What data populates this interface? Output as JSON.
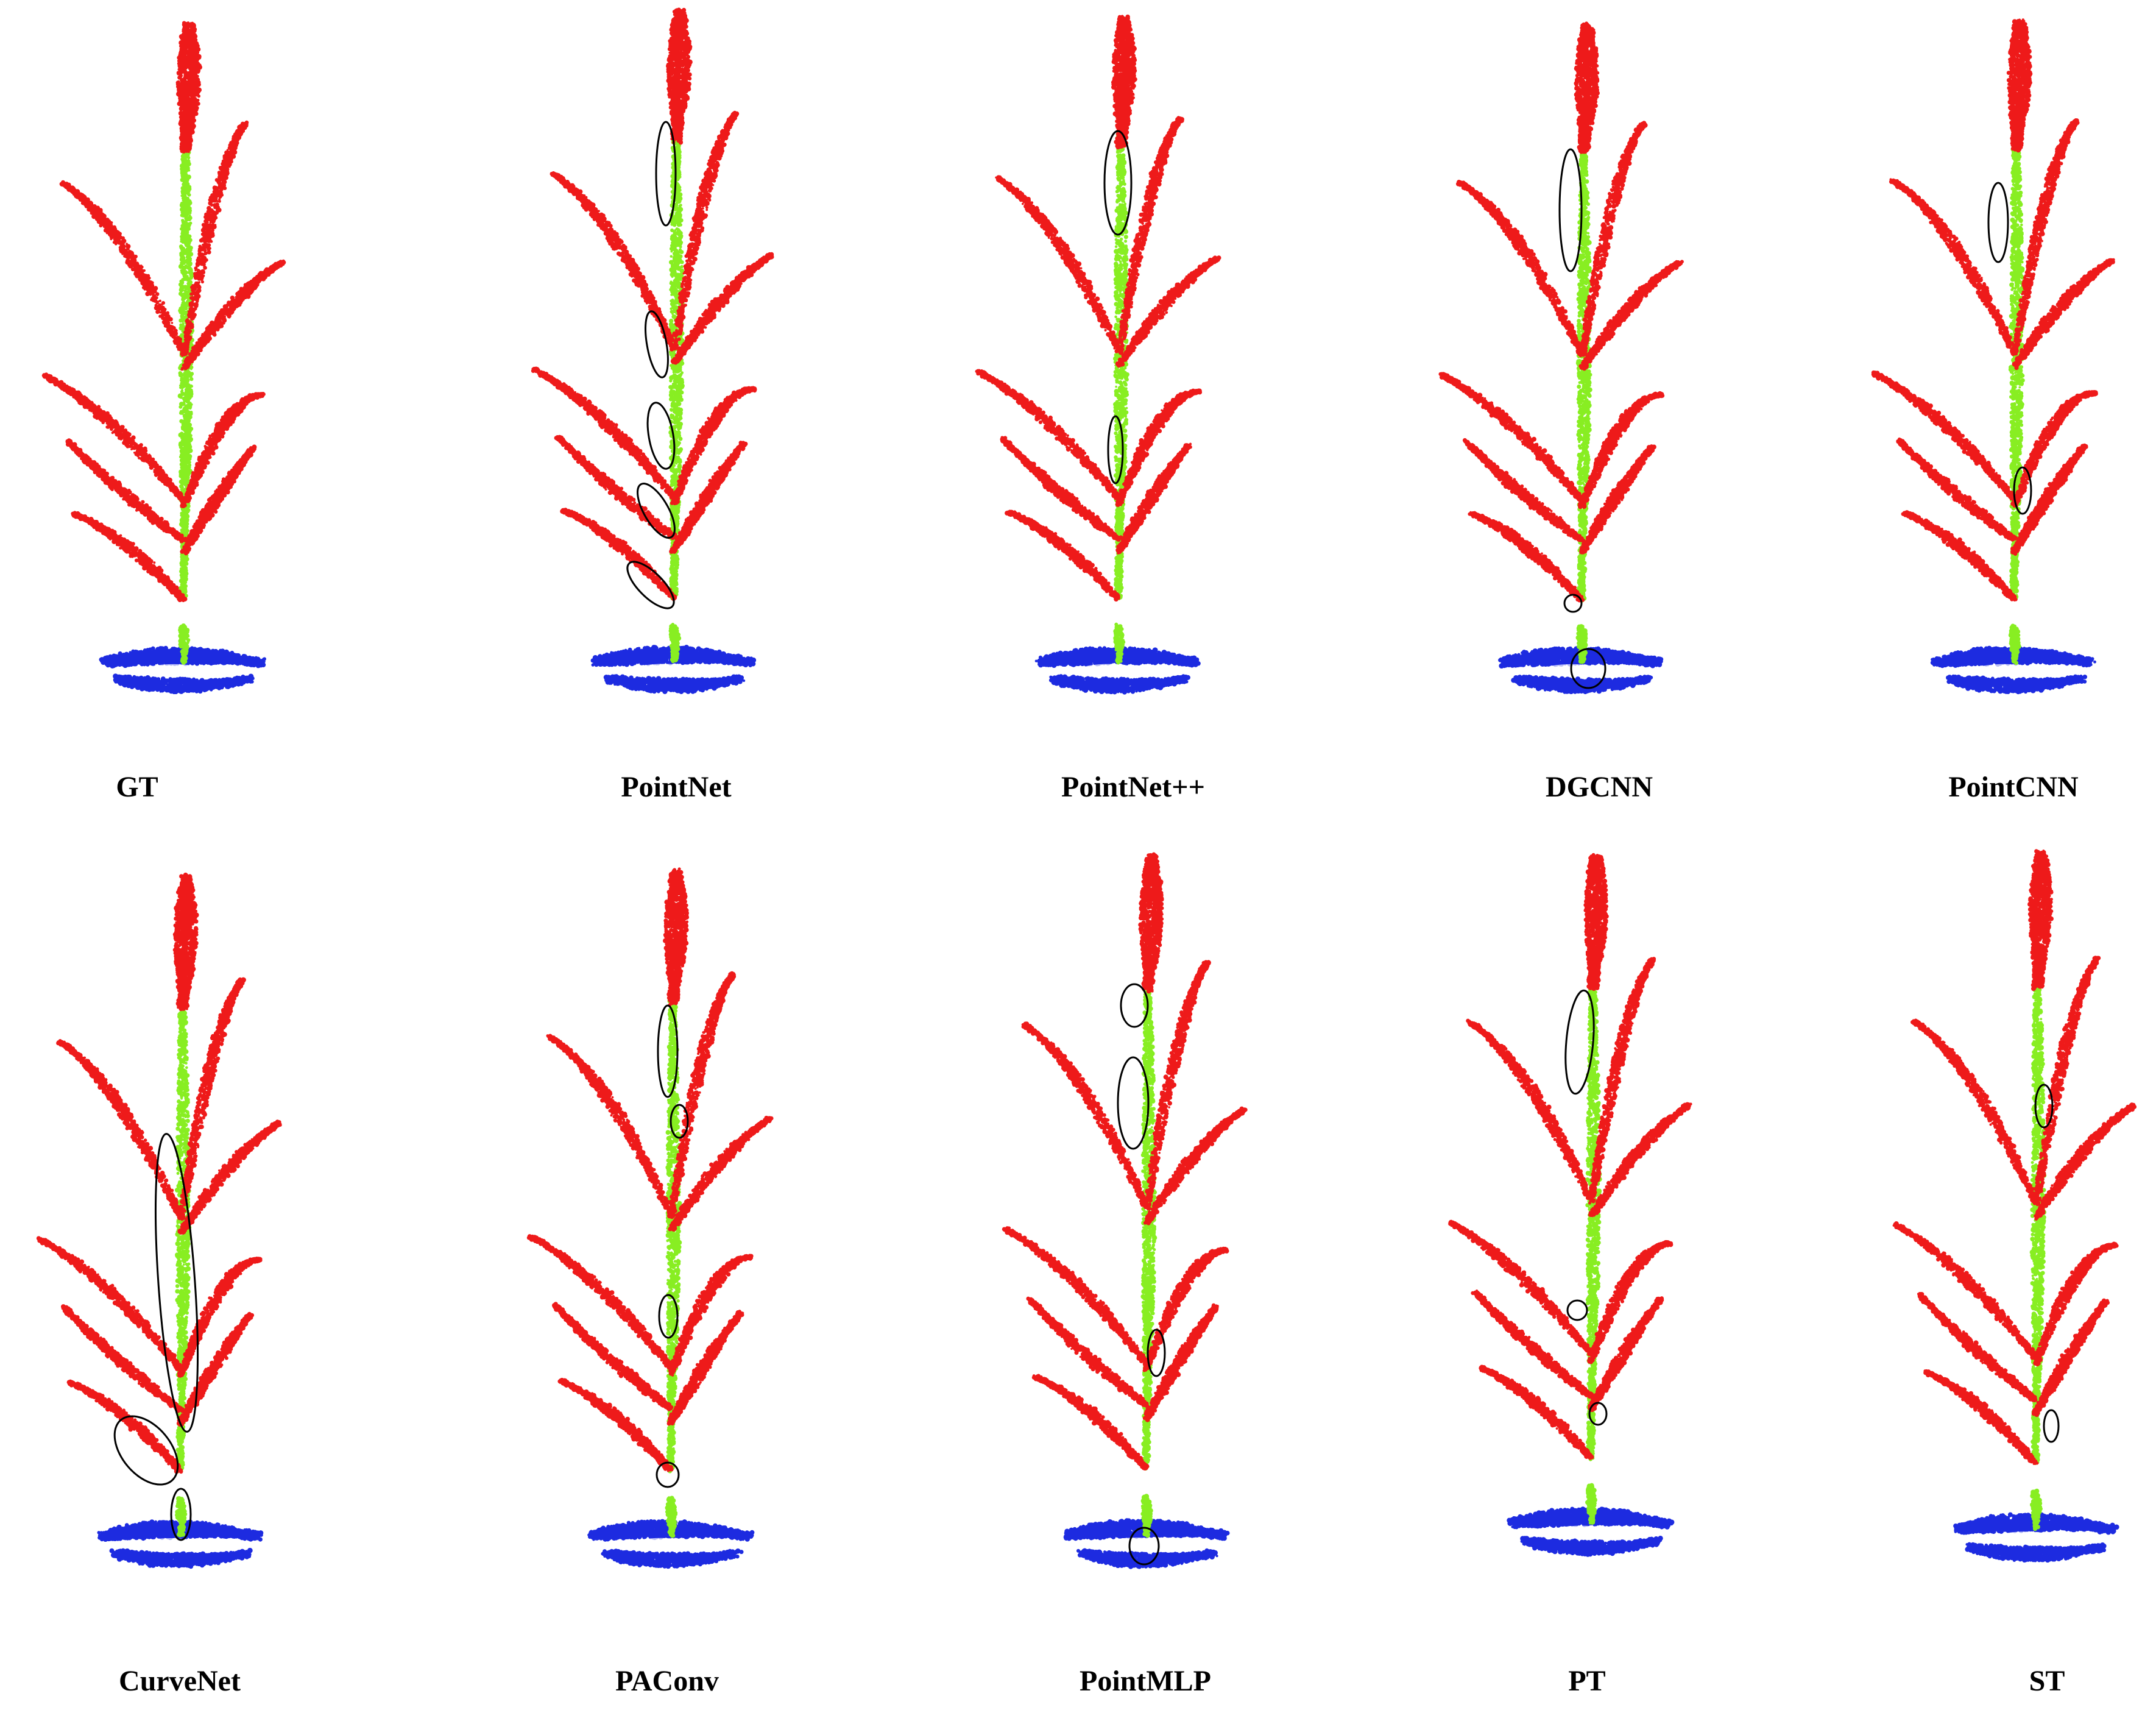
{
  "colors": {
    "panicle": "#ee1a1a",
    "stem": "#88ee22",
    "soil": "#1d2be0",
    "error_ellipse": "#000000",
    "background": "#ffffff"
  },
  "panels": [
    {
      "label": "GT"
    },
    {
      "label": "PointNet"
    },
    {
      "label": "PointNet++"
    },
    {
      "label": "DGCNN"
    },
    {
      "label": "PointCNN"
    },
    {
      "label": "CurveNet"
    },
    {
      "label": "PAConv"
    },
    {
      "label": "PointMLP"
    },
    {
      "label": "PT"
    },
    {
      "label": "ST"
    }
  ]
}
